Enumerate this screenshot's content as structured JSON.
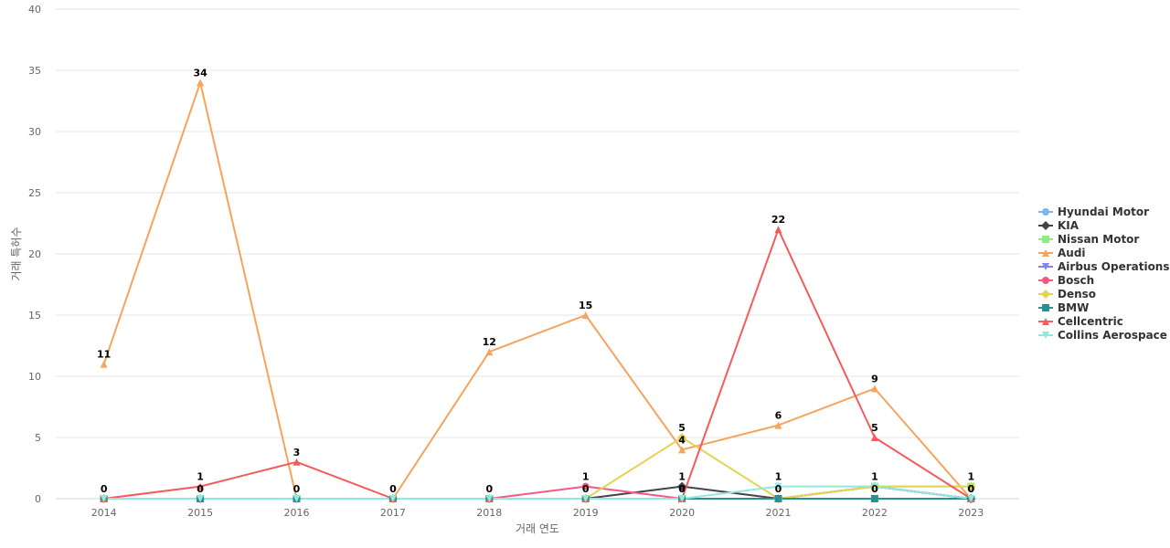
{
  "chart_data": {
    "type": "line",
    "xlabel": "거래 연도",
    "ylabel": "거래 특허수",
    "ylim": [
      0,
      40
    ],
    "yticks": [
      "0",
      "5",
      "10",
      "15",
      "20",
      "25",
      "30",
      "35",
      "40"
    ],
    "x": [
      "2014",
      "2015",
      "2016",
      "2017",
      "2018",
      "2019",
      "2020",
      "2021",
      "2022",
      "2023"
    ],
    "grid": true,
    "legend_position": "right",
    "series": [
      {
        "name": "Hyundai Motor",
        "color": "#7cb5ec",
        "marker": "circle",
        "values": [
          0,
          0,
          0,
          0,
          0,
          0,
          0,
          0,
          1,
          0
        ]
      },
      {
        "name": "KIA",
        "color": "#434348",
        "marker": "diamond",
        "values": [
          0,
          0,
          0,
          0,
          0,
          0,
          1,
          0,
          1,
          0
        ]
      },
      {
        "name": "Nissan Motor",
        "color": "#90ed7d",
        "marker": "square",
        "values": [
          0,
          0,
          0,
          0,
          0,
          0,
          0,
          0,
          1,
          1
        ]
      },
      {
        "name": "Audi",
        "color": "#f7a35c",
        "marker": "triangle",
        "values": [
          11,
          34,
          0,
          0,
          12,
          15,
          4,
          6,
          9,
          0
        ]
      },
      {
        "name": "Airbus Operations",
        "color": "#8085e9",
        "marker": "triangle-down",
        "values": [
          0,
          0,
          0,
          0,
          0,
          0,
          0,
          0,
          0,
          0
        ]
      },
      {
        "name": "Bosch",
        "color": "#f15c80",
        "marker": "circle",
        "values": [
          0,
          0,
          0,
          0,
          0,
          1,
          0,
          0,
          0,
          0
        ]
      },
      {
        "name": "Denso",
        "color": "#e4d354",
        "marker": "diamond",
        "values": [
          0,
          0,
          0,
          0,
          0,
          0,
          5,
          0,
          1,
          1
        ]
      },
      {
        "name": "BMW",
        "color": "#2b908f",
        "marker": "square",
        "values": [
          0,
          0,
          0,
          0,
          0,
          0,
          0,
          0,
          0,
          0
        ]
      },
      {
        "name": "Cellcentric",
        "color": "#f45b5b",
        "marker": "triangle",
        "values": [
          0,
          1,
          3,
          0,
          0,
          0,
          0,
          22,
          5,
          0
        ]
      },
      {
        "name": "Collins Aerospace",
        "color": "#91e8e1",
        "marker": "triangle-down",
        "values": [
          0,
          0,
          0,
          0,
          0,
          0,
          0,
          1,
          1,
          0
        ]
      }
    ],
    "data_labels": [
      {
        "series": "Audi",
        "x": "2014",
        "text": "11"
      },
      {
        "series": "Audi",
        "x": "2015",
        "text": "34"
      },
      {
        "series": "Audi",
        "x": "2016",
        "text": "0"
      },
      {
        "series": "Audi",
        "x": "2017",
        "text": "0"
      },
      {
        "series": "Audi",
        "x": "2018",
        "text": "12"
      },
      {
        "series": "Audi",
        "x": "2019",
        "text": "15"
      },
      {
        "series": "Audi",
        "x": "2020",
        "text": "4"
      },
      {
        "series": "Audi",
        "x": "2021",
        "text": "6"
      },
      {
        "series": "Audi",
        "x": "2022",
        "text": "9"
      },
      {
        "series": "Audi",
        "x": "2023",
        "text": "0"
      },
      {
        "series": "Cellcentric",
        "x": "2014",
        "text": "0"
      },
      {
        "series": "Cellcentric",
        "x": "2015",
        "text": "1"
      },
      {
        "series": "Cellcentric",
        "x": "2016",
        "text": "3"
      },
      {
        "series": "Cellcentric",
        "x": "2018",
        "text": "0"
      },
      {
        "series": "Cellcentric",
        "x": "2021",
        "text": "22"
      },
      {
        "series": "Cellcentric",
        "x": "2022",
        "text": "5"
      },
      {
        "series": "Collins Aerospace",
        "x": "2015",
        "text": "0"
      },
      {
        "series": "Bosch",
        "x": "2019",
        "text": "1"
      },
      {
        "series": "Collins Aerospace",
        "x": "2019",
        "text": "0"
      },
      {
        "series": "Denso",
        "x": "2020",
        "text": "5"
      },
      {
        "series": "KIA",
        "x": "2020",
        "text": "1"
      },
      {
        "series": "Collins Aerospace",
        "x": "2020",
        "text": "0"
      },
      {
        "series": "Collins Aerospace",
        "x": "2021",
        "text": "1"
      },
      {
        "series": "KIA",
        "x": "2021",
        "text": "0"
      },
      {
        "series": "Collins Aerospace",
        "x": "2022",
        "text": "1"
      },
      {
        "series": "BMW",
        "x": "2022",
        "text": "0"
      },
      {
        "series": "Nissan Motor",
        "x": "2023",
        "text": "1"
      },
      {
        "series": "Collins Aerospace",
        "x": "2023",
        "text": "0"
      }
    ]
  }
}
